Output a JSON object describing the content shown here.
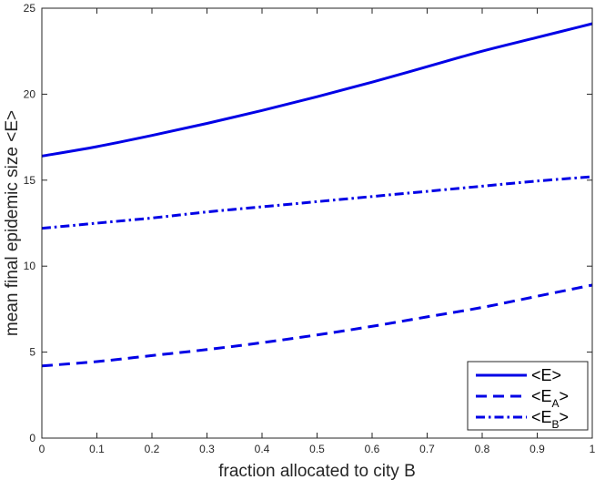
{
  "chart_data": {
    "type": "line",
    "xlabel": "fraction allocated to city B",
    "ylabel": "mean final epidemic size <E>",
    "xlim": [
      0,
      1
    ],
    "ylim": [
      0,
      25
    ],
    "x_ticks": [
      "0",
      "0.1",
      "0.2",
      "0.3",
      "0.4",
      "0.5",
      "0.6",
      "0.7",
      "0.8",
      "0.9",
      "1"
    ],
    "y_ticks": [
      "0",
      "5",
      "10",
      "15",
      "20",
      "25"
    ],
    "grid": false,
    "legend_position": "bottom-right",
    "x": [
      0,
      0.1,
      0.2,
      0.3,
      0.4,
      0.5,
      0.6,
      0.7,
      0.8,
      0.9,
      1.0
    ],
    "series": [
      {
        "legend_base": "<E",
        "legend_sub": "",
        "legend_close": ">",
        "style": "solid",
        "color": "#0000e6",
        "values": [
          16.4,
          16.95,
          17.6,
          18.3,
          19.05,
          19.85,
          20.7,
          21.6,
          22.5,
          23.3,
          24.1
        ]
      },
      {
        "legend_base": "<E",
        "legend_sub": "A",
        "legend_close": ">",
        "style": "dashed",
        "color": "#0000e6",
        "values": [
          4.2,
          4.45,
          4.8,
          5.15,
          5.55,
          6.0,
          6.5,
          7.05,
          7.6,
          8.25,
          8.9
        ]
      },
      {
        "legend_base": "<E",
        "legend_sub": "B",
        "legend_close": ">",
        "style": "dashdot",
        "color": "#0000e6",
        "values": [
          12.2,
          12.5,
          12.8,
          13.15,
          13.45,
          13.75,
          14.05,
          14.35,
          14.65,
          14.95,
          15.2
        ]
      }
    ]
  }
}
